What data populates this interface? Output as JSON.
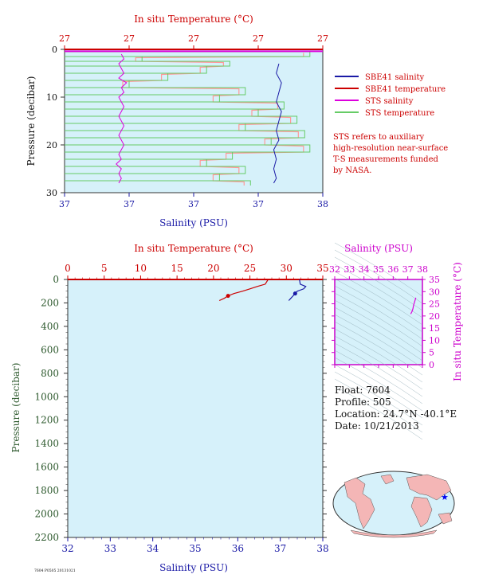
{
  "colors": {
    "plot_bg": "#d6f1fa",
    "salinity": "#1a1aa6",
    "temperature": "#cc0000",
    "sts_salinity": "#dd00dd",
    "sts_temperature": "#66cc66",
    "sts_temp_fill": "#ff9999",
    "axis_green": "#2e5a2e",
    "magenta": "#cc00cc",
    "land": "#f4b6b6",
    "ocean": "#d6f1fa"
  },
  "legend": {
    "items": [
      {
        "label": "SBE41 salinity",
        "color": "#1a1aa6"
      },
      {
        "label": "SBE41 temperature",
        "color": "#cc0000"
      },
      {
        "label": "STS salinity",
        "color": "#dd00dd"
      },
      {
        "label": "STS temperature",
        "color": "#66cc66"
      }
    ],
    "note": [
      "STS refers to auxiliary",
      "high-resolution near-surface",
      "T-S measurements funded",
      "by NASA."
    ]
  },
  "info": {
    "float": "Float:  7604",
    "profile": "Profile:  505",
    "location": "Location:  24.7°N  -40.1°E",
    "date": "Date:  10/21/2013"
  },
  "footer_tag": "7604 P0505  20131021",
  "chart_data": [
    {
      "type": "line",
      "name": "near-surface",
      "top_axis_label": "In situ Temperature (°C)",
      "top_ticks": [
        "27",
        "27",
        "27",
        "27",
        "27"
      ],
      "bottom_axis_label": "Salinity (PSU)",
      "bottom_ticks": [
        "37",
        "37",
        "37",
        "37",
        "38"
      ],
      "ylabel": "Pressure (decibar)",
      "yticks": [
        "0",
        "10",
        "20",
        "30"
      ],
      "ylim": [
        0,
        30
      ],
      "sbe41_salinity": {
        "p": [
          3,
          5,
          7,
          9,
          11,
          13,
          15,
          17,
          19,
          21,
          23,
          25,
          27,
          28
        ],
        "x": [
          0.83,
          0.82,
          0.84,
          0.83,
          0.82,
          0.84,
          0.83,
          0.82,
          0.83,
          0.81,
          0.82,
          0.81,
          0.82,
          0.81
        ]
      },
      "sts_salinity": {
        "p": [
          1,
          2,
          3,
          4,
          5,
          6,
          7,
          8,
          9,
          10,
          11,
          12,
          13,
          14,
          15,
          16,
          17,
          18,
          19,
          20,
          21,
          22,
          23,
          24,
          25,
          26,
          27,
          28
        ],
        "x": [
          0.22,
          0.23,
          0.21,
          0.22,
          0.23,
          0.21,
          0.24,
          0.22,
          0.23,
          0.21,
          0.22,
          0.23,
          0.22,
          0.21,
          0.22,
          0.23,
          0.22,
          0.21,
          0.22,
          0.23,
          0.22,
          0.21,
          0.22,
          0.2,
          0.22,
          0.21,
          0.22,
          0.21
        ]
      },
      "sts_temperature": {
        "p": [
          0.5,
          1.5,
          2.5,
          3.5,
          5,
          6.5,
          8,
          9.5,
          11,
          12.5,
          14,
          15.5,
          17,
          18.5,
          20,
          21.5,
          23,
          24.5,
          26,
          27.5
        ],
        "x": [
          0.95,
          0.3,
          0.64,
          0.55,
          0.4,
          0.25,
          0.7,
          0.6,
          0.85,
          0.75,
          0.9,
          0.7,
          0.93,
          0.8,
          0.95,
          0.65,
          0.55,
          0.7,
          0.6,
          0.72
        ]
      }
    },
    {
      "type": "line",
      "name": "full-profile",
      "top_axis_label": "In situ Temperature (°C)",
      "top_ticks": [
        0,
        5,
        10,
        15,
        20,
        25,
        30,
        35
      ],
      "xlabel": "Salinity (PSU)",
      "xticks": [
        32,
        33,
        34,
        35,
        36,
        37,
        38
      ],
      "ylabel": "Pressure (decibar)",
      "yticks": [
        0,
        200,
        400,
        600,
        800,
        1000,
        1200,
        1400,
        1600,
        1800,
        2000,
        2200
      ],
      "xlim": [
        32,
        38
      ],
      "tlim": [
        0,
        35
      ],
      "ylim": [
        0,
        2200
      ],
      "salinity": {
        "p": [
          0,
          20,
          40,
          60,
          80,
          100,
          120,
          140,
          160,
          180
        ],
        "s": [
          37.45,
          37.46,
          37.47,
          37.6,
          37.55,
          37.4,
          37.35,
          37.3,
          37.25,
          37.2
        ]
      },
      "temperature": {
        "p": [
          0,
          20,
          40,
          60,
          80,
          100,
          120,
          140,
          160,
          180
        ],
        "t": [
          27.5,
          27.3,
          27.1,
          26.0,
          25.0,
          24.0,
          22.8,
          22.0,
          21.5,
          20.8
        ]
      }
    },
    {
      "type": "scatter",
      "name": "ts-diagram",
      "top_axis_label": "Salinity (PSU)",
      "xticks": [
        32,
        33,
        34,
        35,
        36,
        37,
        38
      ],
      "ylabel": "In situ Temperature (°C)",
      "yticks": [
        0,
        5,
        10,
        15,
        20,
        25,
        30,
        35
      ],
      "xlim": [
        32,
        38
      ],
      "ylim": [
        0,
        35
      ],
      "s": [
        37.2,
        37.3,
        37.35,
        37.4,
        37.5,
        37.55
      ],
      "t": [
        20.8,
        22.0,
        23.0,
        24.5,
        26.5,
        27.5
      ]
    }
  ]
}
